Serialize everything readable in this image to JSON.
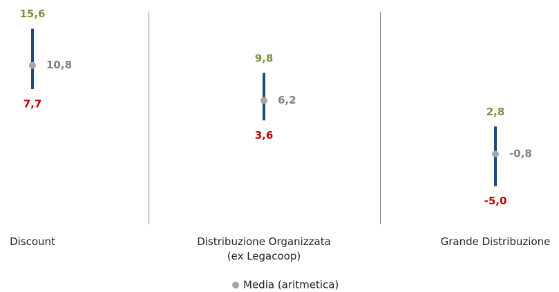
{
  "chart_data": {
    "type": "hilo",
    "categories": [
      "Discount",
      "Distribuzione Organizzata (ex Legacoop)",
      "Grande Distribuzione"
    ],
    "high": {
      "values": [
        15.6,
        9.8,
        2.8
      ],
      "value_labels": [
        "15,6",
        "9,8",
        "2,8"
      ],
      "color": "#77933c"
    },
    "low": {
      "values": [
        7.7,
        3.6,
        -5.0
      ],
      "value_labels": [
        "7,7",
        "3,6",
        "-5,0"
      ],
      "color": "#c00000"
    },
    "mean": {
      "name": "Media (aritmetica)",
      "values": [
        10.8,
        6.2,
        -0.8
      ],
      "value_labels": [
        "10,8",
        "6,2",
        "-0,8"
      ],
      "color": "#a6a6a6",
      "label_color": "#808080"
    },
    "range_color": "#1f497d",
    "ylim": [
      -10,
      18
    ]
  }
}
